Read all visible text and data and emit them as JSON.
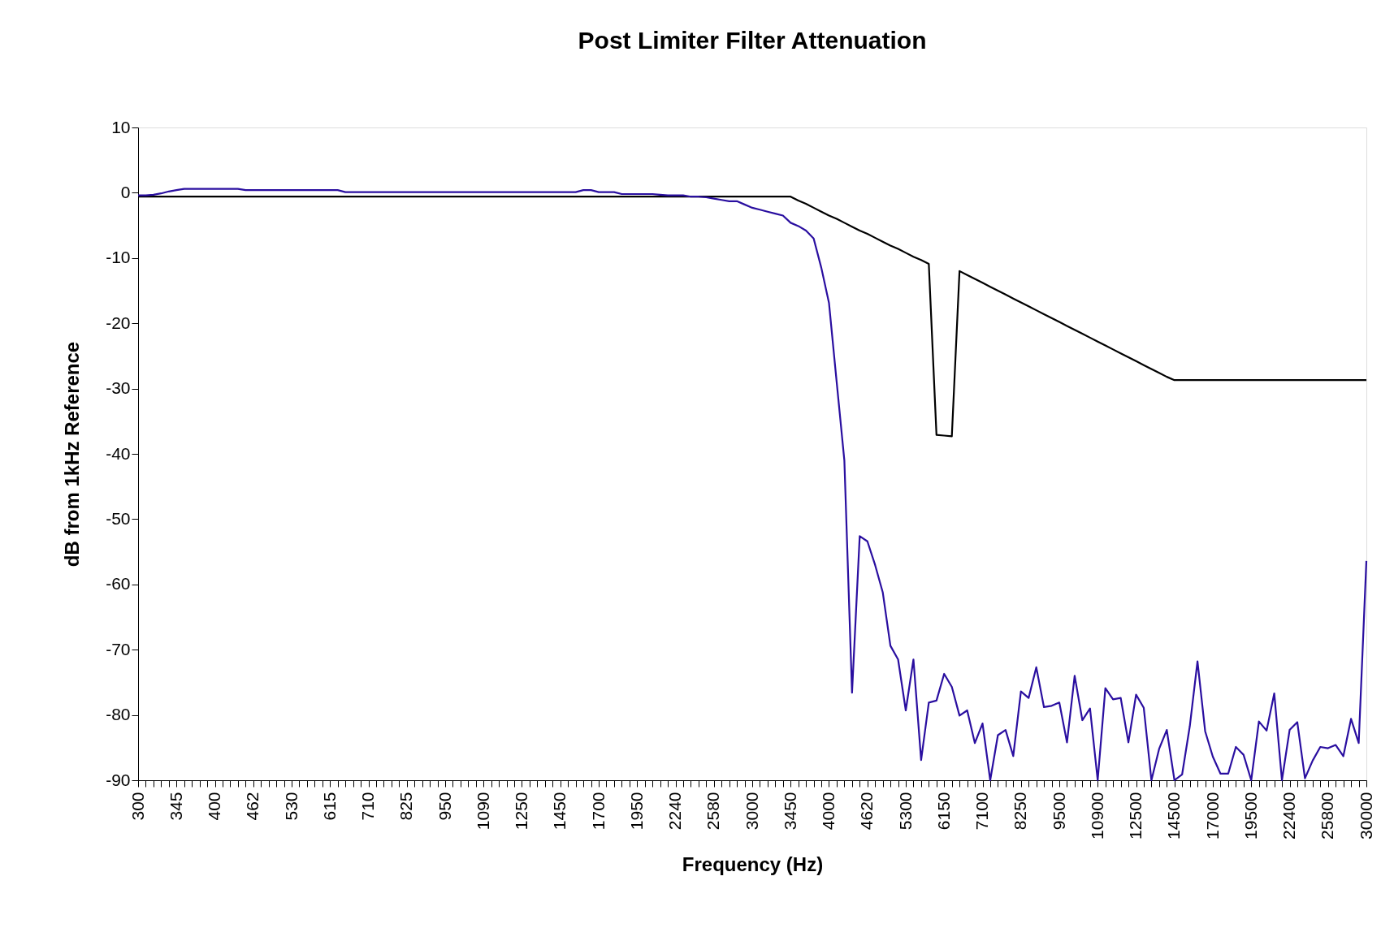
{
  "chart_data": {
    "type": "line",
    "title": "Post Limiter Filter Attenuation",
    "xlabel": "Frequency (Hz)",
    "ylabel": "dB from 1kHz Reference",
    "categories": [
      "300",
      null,
      null,
      null,
      null,
      "345",
      null,
      null,
      null,
      null,
      "400",
      null,
      null,
      null,
      null,
      "462",
      null,
      null,
      null,
      null,
      "530",
      null,
      null,
      null,
      null,
      "615",
      null,
      null,
      null,
      null,
      "710",
      null,
      null,
      null,
      null,
      "825",
      null,
      null,
      null,
      null,
      "950",
      null,
      null,
      null,
      null,
      "1090",
      null,
      null,
      null,
      null,
      "1250",
      null,
      null,
      null,
      null,
      "1450",
      null,
      null,
      null,
      null,
      "1700",
      null,
      null,
      null,
      null,
      "1950",
      null,
      null,
      null,
      null,
      "2240",
      null,
      null,
      null,
      null,
      "2580",
      null,
      null,
      null,
      null,
      "3000",
      null,
      null,
      null,
      null,
      "3450",
      null,
      null,
      null,
      null,
      "4000",
      null,
      null,
      null,
      null,
      "4620",
      null,
      null,
      null,
      null,
      "5300",
      null,
      null,
      null,
      null,
      "6150",
      null,
      null,
      null,
      null,
      "7100",
      null,
      null,
      null,
      null,
      "8250",
      null,
      null,
      null,
      null,
      "9500",
      null,
      null,
      null,
      null,
      "10900",
      null,
      null,
      null,
      null,
      "12500",
      null,
      null,
      null,
      null,
      "14500",
      null,
      null,
      null,
      null,
      "17000",
      null,
      null,
      null,
      null,
      "19500",
      null,
      null,
      null,
      null,
      "22400",
      null,
      null,
      null,
      null,
      "25800",
      null,
      null,
      null,
      null,
      "30000"
    ],
    "series": [
      {
        "color": "#000000",
        "values": [
          -0.6,
          -0.6,
          -0.6,
          -0.6,
          -0.6,
          -0.6,
          -0.6,
          -0.6,
          -0.6,
          -0.6,
          -0.6,
          -0.6,
          -0.6,
          -0.6,
          -0.6,
          -0.6,
          -0.6,
          -0.6,
          -0.6,
          -0.6,
          -0.6,
          -0.6,
          -0.6,
          -0.6,
          -0.6,
          -0.6,
          -0.6,
          -0.6,
          -0.6,
          -0.6,
          -0.6,
          -0.6,
          -0.6,
          -0.6,
          -0.6,
          -0.6,
          -0.6,
          -0.6,
          -0.6,
          -0.6,
          -0.6,
          -0.6,
          -0.6,
          -0.6,
          -0.6,
          -0.6,
          -0.6,
          -0.6,
          -0.6,
          -0.6,
          -0.6,
          -0.6,
          -0.6,
          -0.6,
          -0.6,
          -0.6,
          -0.6,
          -0.6,
          -0.6,
          -0.6,
          -0.6,
          -0.6,
          -0.6,
          -0.6,
          -0.6,
          -0.6,
          -0.6,
          -0.6,
          -0.6,
          -0.6,
          -0.6,
          -0.6,
          -0.6,
          -0.6,
          -0.6,
          -0.6,
          -0.6,
          -0.6,
          -0.6,
          -0.6,
          -0.6,
          -0.6,
          -0.6,
          -0.6,
          -0.6,
          -0.6,
          -1.2,
          -1.7,
          -2.3,
          -2.9,
          -3.5,
          -4.0,
          -4.6,
          -5.2,
          -5.8,
          -6.3,
          -6.9,
          -7.5,
          -8.1,
          -8.6,
          -9.2,
          -9.8,
          -10.3,
          -10.9,
          -37.1,
          -37.2,
          -37.3,
          -12.0,
          -12.6,
          -13.2,
          -13.8,
          -14.4,
          -15.0,
          -15.6,
          -16.2,
          -16.8,
          -17.4,
          -18.0,
          -18.6,
          -19.2,
          -19.8,
          -20.4,
          -21.0,
          -21.6,
          -22.2,
          -22.8,
          -23.4,
          -24.0,
          -24.6,
          -25.2,
          -25.8,
          -26.4,
          -27.0,
          -27.6,
          -28.2,
          -28.7,
          -28.7,
          -28.7,
          -28.7,
          -28.7,
          -28.7,
          -28.7,
          -28.7,
          -28.7,
          -28.7,
          -28.7,
          -28.7,
          -28.7,
          -28.7,
          -28.7,
          -28.7,
          -28.7,
          -28.7,
          -28.7,
          -28.7,
          -28.7,
          -28.7,
          -28.7,
          -28.7,
          -28.7,
          -28.7
        ]
      },
      {
        "color": "#2a0fa0",
        "values": [
          -0.4,
          -0.4,
          -0.3,
          -0.1,
          0.2,
          0.4,
          0.6,
          0.6,
          0.6,
          0.6,
          0.6,
          0.6,
          0.6,
          0.6,
          0.4,
          0.4,
          0.4,
          0.4,
          0.4,
          0.4,
          0.4,
          0.4,
          0.4,
          0.4,
          0.4,
          0.4,
          0.4,
          0.1,
          0.1,
          0.1,
          0.1,
          0.1,
          0.1,
          0.1,
          0.1,
          0.1,
          0.1,
          0.1,
          0.1,
          0.1,
          0.1,
          0.1,
          0.1,
          0.1,
          0.1,
          0.1,
          0.1,
          0.1,
          0.1,
          0.1,
          0.1,
          0.1,
          0.1,
          0.1,
          0.1,
          0.1,
          0.1,
          0.1,
          0.4,
          0.4,
          0.1,
          0.1,
          0.1,
          -0.2,
          -0.2,
          -0.2,
          -0.2,
          -0.2,
          -0.3,
          -0.4,
          -0.4,
          -0.4,
          -0.6,
          -0.6,
          -0.7,
          -0.9,
          -1.1,
          -1.3,
          -1.3,
          -1.8,
          -2.3,
          -2.6,
          -2.9,
          -3.2,
          -3.5,
          -4.6,
          -5.1,
          -5.8,
          -7.0,
          -11.5,
          -16.9,
          -29,
          -41,
          -76.6,
          -52.6,
          -53.4,
          -57.0,
          -61.2,
          -69.4,
          -71.5,
          -79.3,
          -71.5,
          -86.9,
          -78.1,
          -77.8,
          -73.7,
          -75.7,
          -80.1,
          -79.3,
          -84.3,
          -81.3,
          -90,
          -83.1,
          -82.3,
          -86.3,
          -76.4,
          -77.4,
          -72.7,
          -78.8,
          -78.6,
          -78.1,
          -84.2,
          -74.0,
          -80.8,
          -79.0,
          -90,
          -75.9,
          -77.6,
          -77.4,
          -84.2,
          -76.9,
          -78.9,
          -90,
          -85.2,
          -82.3,
          -90,
          -89.1,
          -81.7,
          -71.8,
          -82.5,
          -86.4,
          -89.0,
          -89.0,
          -84.9,
          -86.1,
          -90,
          -81.0,
          -82.4,
          -76.7,
          -90,
          -82.3,
          -81.1,
          -89.7,
          -87.0,
          -84.9,
          -85.1,
          -84.6,
          -86.3,
          -80.6,
          -84.3,
          -56.4
        ]
      }
    ],
    "ylim": [
      -90,
      10
    ],
    "yticks": [
      -90,
      -80,
      -70,
      -60,
      -50,
      -40,
      -30,
      -20,
      -10,
      0,
      10
    ]
  }
}
